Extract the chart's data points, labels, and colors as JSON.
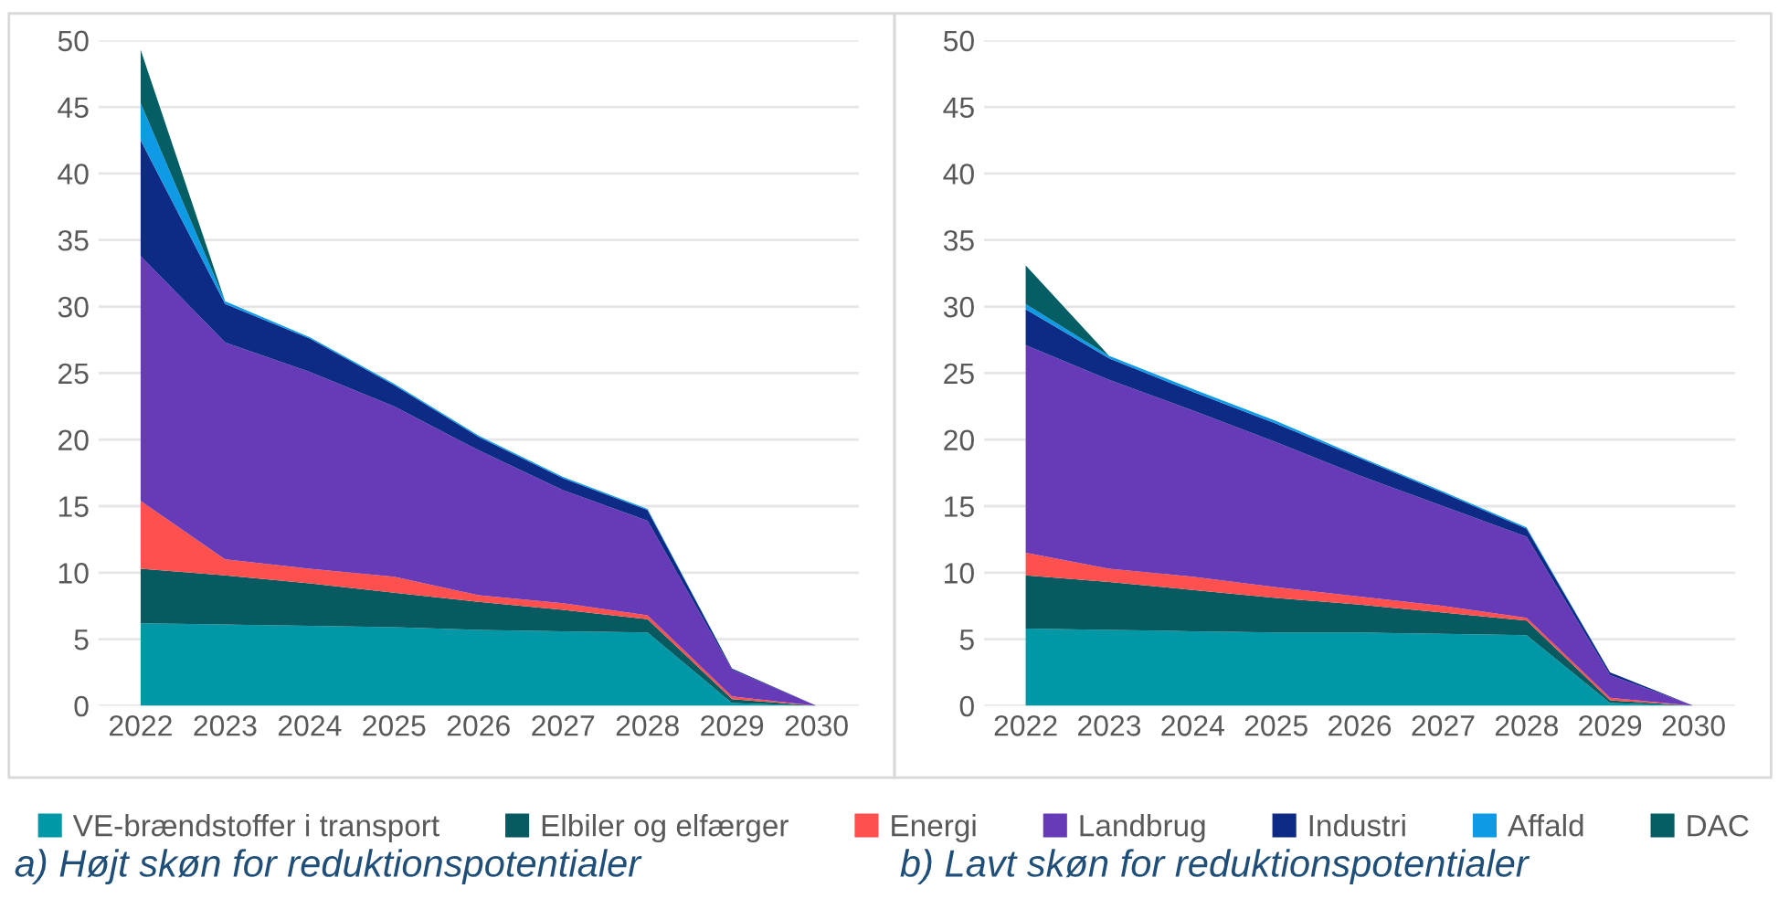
{
  "chart_data": [
    {
      "type": "area",
      "stacked": true,
      "title": "a) Højt skøn for reduktionspotentialer",
      "categories": [
        "2022",
        "2023",
        "2024",
        "2025",
        "2026",
        "2027",
        "2028",
        "2029",
        "2030"
      ],
      "ylim": [
        0,
        50
      ],
      "yticks": [
        0,
        5,
        10,
        15,
        20,
        25,
        30,
        35,
        40,
        45,
        50
      ],
      "grid": "y",
      "legend": "bottom",
      "series": [
        {
          "name": "VE-brændstoffer i transport",
          "color": "#0097a7",
          "values": [
            6.2,
            6.1,
            6.0,
            5.9,
            5.7,
            5.6,
            5.5,
            0.2,
            0
          ]
        },
        {
          "name": "Elbiler og elfærger",
          "color": "#065a60",
          "values": [
            4.1,
            3.7,
            3.2,
            2.6,
            2.1,
            1.6,
            1.0,
            0.3,
            0
          ]
        },
        {
          "name": "Energi",
          "color": "#ff5050",
          "values": [
            5.1,
            1.2,
            1.1,
            1.2,
            0.5,
            0.5,
            0.3,
            0.2,
            0
          ]
        },
        {
          "name": "Landbrug",
          "color": "#673ab7",
          "values": [
            18.4,
            16.3,
            14.8,
            12.8,
            10.9,
            8.5,
            7.1,
            2.0,
            0
          ]
        },
        {
          "name": "Industri",
          "color": "#0d2a85",
          "values": [
            8.7,
            2.9,
            2.5,
            1.6,
            1.0,
            0.9,
            0.8,
            0.1,
            0
          ]
        },
        {
          "name": "Affald",
          "color": "#0f9ae6",
          "values": [
            2.8,
            0.2,
            0.1,
            0.1,
            0.1,
            0.1,
            0.1,
            0,
            0
          ]
        },
        {
          "name": "DAC",
          "color": "#055e63",
          "values": [
            4.0,
            0,
            0,
            0,
            0,
            0,
            0,
            0,
            0
          ]
        }
      ]
    },
    {
      "type": "area",
      "stacked": true,
      "title": "b) Lavt skøn for reduktionspotentialer",
      "categories": [
        "2022",
        "2023",
        "2024",
        "2025",
        "2026",
        "2027",
        "2028",
        "2029",
        "2030"
      ],
      "ylim": [
        0,
        50
      ],
      "yticks": [
        0,
        5,
        10,
        15,
        20,
        25,
        30,
        35,
        40,
        45,
        50
      ],
      "grid": "y",
      "series": [
        {
          "color": "#0097a7",
          "values": [
            5.8,
            5.7,
            5.6,
            5.5,
            5.5,
            5.4,
            5.3,
            0.2,
            0
          ]
        },
        {
          "color": "#065a60",
          "values": [
            4.0,
            3.6,
            3.1,
            2.6,
            2.1,
            1.6,
            1.1,
            0.2,
            0
          ]
        },
        {
          "color": "#ff5050",
          "values": [
            1.7,
            1.0,
            1.0,
            0.8,
            0.6,
            0.5,
            0.2,
            0.2,
            0
          ]
        },
        {
          "color": "#673ab7",
          "values": [
            15.6,
            14.2,
            12.5,
            10.9,
            9.1,
            7.5,
            6.1,
            1.7,
            0
          ]
        },
        {
          "color": "#0d2a85",
          "values": [
            2.7,
            1.6,
            1.4,
            1.4,
            1.3,
            1.0,
            0.6,
            0.2,
            0
          ]
        },
        {
          "color": "#0f9ae6",
          "values": [
            0.4,
            0.2,
            0.2,
            0.2,
            0.1,
            0.1,
            0.1,
            0,
            0
          ]
        },
        {
          "color": "#055e63",
          "values": [
            2.9,
            0,
            0,
            0,
            0,
            0,
            0,
            0,
            0
          ]
        }
      ]
    }
  ]
}
